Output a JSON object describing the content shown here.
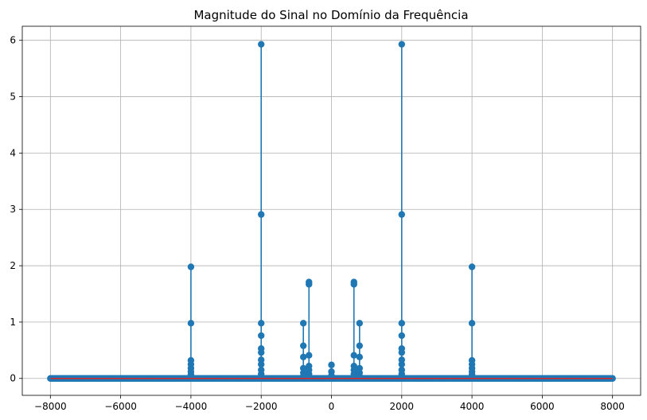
{
  "chart_data": {
    "type": "stem",
    "title": "Magnitude do Sinal no Domínio da Frequência",
    "xlabel": "",
    "ylabel": "",
    "xlim": [
      -8800,
      8800
    ],
    "ylim": [
      -0.3,
      6.25
    ],
    "xticks": [
      -8000,
      -6000,
      -4000,
      -2000,
      0,
      2000,
      4000,
      6000,
      8000
    ],
    "yticks": [
      0,
      1,
      2,
      3,
      4,
      5,
      6
    ],
    "grid": true,
    "colors": {
      "stem": "#1f77b4",
      "baseline": "#d62728",
      "grid": "#b0b0b0"
    },
    "baseline": {
      "from": -8000,
      "to": 8000,
      "value": 0
    },
    "stems": [
      {
        "x": -4000,
        "values": [
          1.98,
          0.98,
          0.32,
          0.25,
          0.18,
          0.12,
          0.07,
          0.03
        ]
      },
      {
        "x": -2000,
        "values": [
          5.93,
          2.91,
          0.98,
          0.76,
          0.53,
          0.46,
          0.33,
          0.25,
          0.15,
          0.08,
          0.03
        ]
      },
      {
        "x": -800,
        "values": [
          0.98,
          0.58,
          0.38,
          0.18,
          0.1,
          0.04
        ]
      },
      {
        "x": -640,
        "values": [
          1.71,
          1.67,
          0.41,
          0.22,
          0.15,
          0.08,
          0.03
        ]
      },
      {
        "x": 0,
        "values": [
          0.24,
          0.12,
          0.05
        ]
      },
      {
        "x": 640,
        "values": [
          1.71,
          1.67,
          0.41,
          0.22,
          0.15,
          0.08,
          0.03
        ]
      },
      {
        "x": 800,
        "values": [
          0.98,
          0.58,
          0.38,
          0.18,
          0.1,
          0.04
        ]
      },
      {
        "x": 2000,
        "values": [
          5.93,
          2.91,
          0.98,
          0.76,
          0.53,
          0.46,
          0.33,
          0.25,
          0.15,
          0.08,
          0.03
        ]
      },
      {
        "x": 4000,
        "values": [
          1.98,
          0.98,
          0.32,
          0.25,
          0.18,
          0.12,
          0.07,
          0.03
        ]
      }
    ]
  }
}
